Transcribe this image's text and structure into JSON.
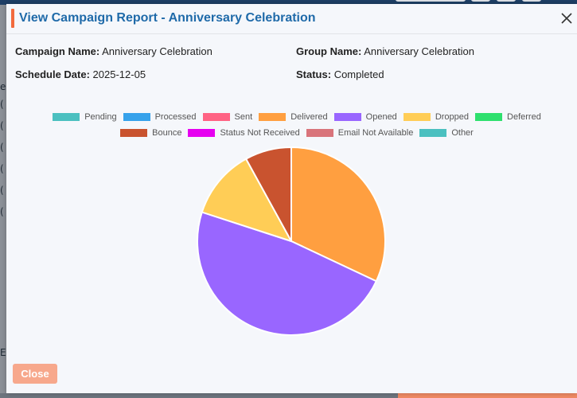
{
  "modal": {
    "title": "View Campaign Report - Anniversary Celebration",
    "close_icon": "close-icon",
    "close_button_label": "Close"
  },
  "details": {
    "campaign_name_label": "Campaign Name:",
    "campaign_name_value": "Anniversary Celebration",
    "group_name_label": "Group Name:",
    "group_name_value": "Anniversary Celebration",
    "schedule_date_label": "Schedule Date:",
    "schedule_date_value": "2025-12-05",
    "status_label": "Status:",
    "status_value": "Completed"
  },
  "legend_row1": [
    {
      "label": "Pending",
      "color": "#4bc0c0"
    },
    {
      "label": "Processed",
      "color": "#36a2eb"
    },
    {
      "label": "Sent",
      "color": "#ff6384"
    },
    {
      "label": "Delivered",
      "color": "#ff9f40"
    },
    {
      "label": "Opened",
      "color": "#9966ff"
    },
    {
      "label": "Dropped",
      "color": "#ffcd56"
    },
    {
      "label": "Deferred",
      "color": "#2ee06e"
    }
  ],
  "legend_row2": [
    {
      "label": "Bounce",
      "color": "#c9532f"
    },
    {
      "label": "Status Not Received",
      "color": "#e600f0"
    },
    {
      "label": "Email Not Available",
      "color": "#d9747b"
    },
    {
      "label": "Other",
      "color": "#4bc0c0"
    }
  ],
  "chart_data": {
    "type": "pie",
    "categories": [
      "Delivered",
      "Opened",
      "Dropped",
      "Bounce"
    ],
    "values": [
      32,
      48,
      12,
      8
    ],
    "colors": [
      "#ff9f40",
      "#9966ff",
      "#ffcd56",
      "#c9532f"
    ]
  },
  "background": {
    "left_glyphs": [
      "e",
      "(",
      "(",
      "(",
      "(",
      "(",
      "(",
      "E"
    ]
  }
}
